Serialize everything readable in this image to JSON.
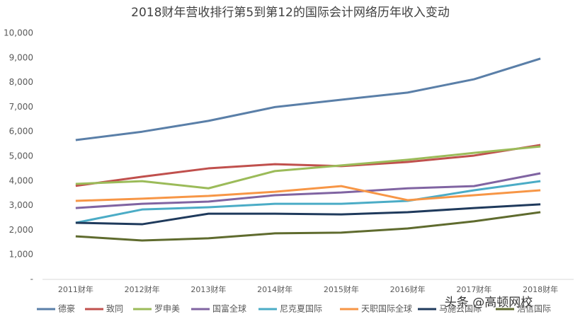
{
  "chart_data": {
    "type": "line",
    "title": "2018财年营收排行第5到第12的国际会计网络历年收入变动",
    "categories": [
      "2011财年",
      "2012财年",
      "2013财年",
      "2014财年",
      "2015财年",
      "2016财年",
      "2017财年",
      "2018财年"
    ],
    "series": [
      {
        "name": "德豪",
        "color": "#5a7fa8",
        "values": [
          5660,
          6000,
          6440,
          7000,
          7300,
          7590,
          8130,
          8970
        ]
      },
      {
        "name": "致同",
        "color": "#c0504d",
        "values": [
          3800,
          4170,
          4510,
          4680,
          4600,
          4770,
          5030,
          5460
        ]
      },
      {
        "name": "罗申美",
        "color": "#9bbb59",
        "values": [
          3880,
          3990,
          3700,
          4400,
          4630,
          4860,
          5140,
          5400
        ]
      },
      {
        "name": "国富全球",
        "color": "#8064a2",
        "values": [
          2900,
          3070,
          3160,
          3420,
          3530,
          3700,
          3790,
          4310
        ]
      },
      {
        "name": "尼克夏国际",
        "color": "#4bacc6",
        "values": [
          2300,
          2840,
          2930,
          3070,
          3070,
          3190,
          3620,
          3990
        ]
      },
      {
        "name": "天职国际全球",
        "color": "#f79646",
        "values": [
          3190,
          3280,
          3390,
          3560,
          3790,
          3220,
          3420,
          3620
        ]
      },
      {
        "name": "马施云国际",
        "color": "#1f3a5c",
        "values": [
          2300,
          2240,
          2670,
          2670,
          2640,
          2730,
          2900,
          3050
        ]
      },
      {
        "name": "浩信国际",
        "color": "#5f6b2e",
        "values": [
          1750,
          1580,
          1670,
          1870,
          1900,
          2070,
          2360,
          2730
        ]
      }
    ],
    "ylim": [
      0,
      10000
    ],
    "yticks": [
      {
        "value": 0,
        "label": "-"
      },
      {
        "value": 1000,
        "label": "1,000"
      },
      {
        "value": 2000,
        "label": "2,000"
      },
      {
        "value": 3000,
        "label": "3,000"
      },
      {
        "value": 4000,
        "label": "4,000"
      },
      {
        "value": 5000,
        "label": "5,000"
      },
      {
        "value": 6000,
        "label": "6,000"
      },
      {
        "value": 7000,
        "label": "7,000"
      },
      {
        "value": 8000,
        "label": "8,000"
      },
      {
        "value": 9000,
        "label": "9,000"
      },
      {
        "value": 10000,
        "label": "10,000"
      }
    ],
    "legend": "bottom",
    "watermark": "头条 @高顿网校"
  }
}
